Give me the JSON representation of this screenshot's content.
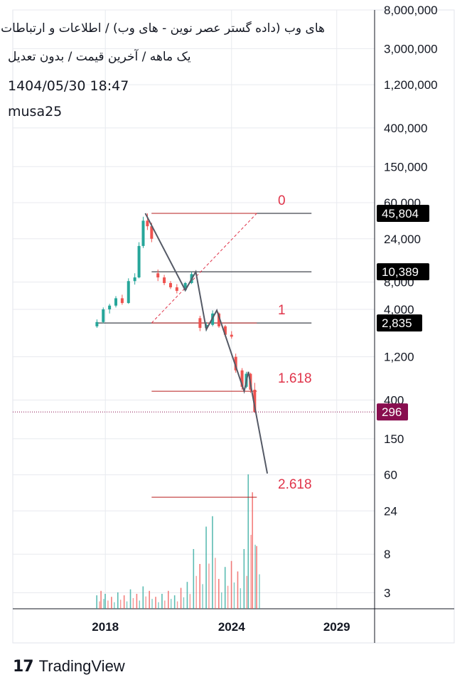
{
  "header": {
    "title": "های وب (داده گستر عصر نوین - های وب) / اطلاعات و ارتباطات",
    "subtitle": "یک ماهه / آخرین قیمت / بدون تعدیل",
    "datetime": "1404/05/30 18:47",
    "user": "musa25"
  },
  "footer": {
    "brand": "TradingView",
    "logo_icon": "tradingview-logo-icon"
  },
  "colors": {
    "up": "#26a69a",
    "down": "#ef5350",
    "fib": "#e0344a",
    "fib_line": "#b71c1c",
    "price_tag": "#000000",
    "current_tag": "#880e4f",
    "grid": "#e8eaef"
  },
  "chart_data": {
    "type": "candlestick",
    "scale": "log",
    "ylim": [
      2,
      8000000
    ],
    "xlim": [
      2013.6,
      2030.8
    ],
    "x_ticks": [
      "2018",
      "2024",
      "2029"
    ],
    "y_ticks": [
      "8,000,000",
      "3,000,000",
      "1,200,000",
      "400,000",
      "150,000",
      "60,000",
      "24,000",
      "8,000",
      "4,000",
      "1,200",
      "400",
      "150",
      "60",
      "24",
      "8",
      "3"
    ],
    "price_tags": [
      {
        "label": "45,804",
        "value": 45804,
        "kind": "level"
      },
      {
        "label": "10,389",
        "value": 10389,
        "kind": "level"
      },
      {
        "label": "2,835",
        "value": 2835,
        "kind": "level"
      },
      {
        "label": "296",
        "value": 296,
        "kind": "current"
      }
    ],
    "fib_levels": [
      {
        "label": "0",
        "value": 45804
      },
      {
        "label": "1",
        "value": 2835
      },
      {
        "label": "1.618",
        "value": 500
      },
      {
        "label": "2.618",
        "value": 34
      }
    ],
    "fib_range": [
      2020.2,
      2025.2
    ],
    "trend_lines": [
      {
        "x1": 2017.6,
        "x2": 2027.8,
        "value": 2835
      },
      {
        "x1": 2020.2,
        "x2": 2027.8,
        "value": 10389
      },
      {
        "x1": 2020.2,
        "x2": 2027.8,
        "value": 45804
      }
    ],
    "fib_diagonal": [
      [
        2020.2,
        2835
      ],
      [
        2025.2,
        45804
      ]
    ],
    "wave_path": [
      [
        2019.9,
        45804
      ],
      [
        2021.8,
        6500
      ],
      [
        2022.3,
        10389
      ],
      [
        2022.8,
        2400
      ],
      [
        2023.3,
        3900
      ],
      [
        2024.6,
        500
      ],
      [
        2024.8,
        820
      ],
      [
        2025.0,
        450
      ],
      [
        2025.7,
        62
      ]
    ],
    "candles": [
      {
        "t": 2017.6,
        "o": 2600,
        "h": 3100,
        "l": 2500,
        "c": 2900
      },
      {
        "t": 2017.9,
        "o": 2900,
        "h": 4200,
        "l": 2800,
        "c": 4000
      },
      {
        "t": 2018.2,
        "o": 4000,
        "h": 4600,
        "l": 3600,
        "c": 4400
      },
      {
        "t": 2018.5,
        "o": 4400,
        "h": 5600,
        "l": 4200,
        "c": 5300
      },
      {
        "t": 2018.8,
        "o": 5300,
        "h": 5800,
        "l": 4500,
        "c": 4700
      },
      {
        "t": 2019.1,
        "o": 4700,
        "h": 8800,
        "l": 4600,
        "c": 8200
      },
      {
        "t": 2019.4,
        "o": 8200,
        "h": 10000,
        "l": 7500,
        "c": 9000
      },
      {
        "t": 2019.6,
        "o": 9000,
        "h": 22000,
        "l": 8800,
        "c": 20000
      },
      {
        "t": 2019.8,
        "o": 20000,
        "h": 42000,
        "l": 19000,
        "c": 38000
      },
      {
        "t": 2020.0,
        "o": 38000,
        "h": 45804,
        "l": 30000,
        "c": 33000
      },
      {
        "t": 2020.2,
        "o": 33000,
        "h": 36000,
        "l": 22000,
        "c": 24000
      },
      {
        "t": 2020.5,
        "o": 10000,
        "h": 11000,
        "l": 8200,
        "c": 9000
      },
      {
        "t": 2020.8,
        "o": 9000,
        "h": 9600,
        "l": 7400,
        "c": 7800
      },
      {
        "t": 2021.1,
        "o": 7800,
        "h": 8200,
        "l": 6700,
        "c": 7000
      },
      {
        "t": 2021.4,
        "o": 7000,
        "h": 7600,
        "l": 6000,
        "c": 6400
      },
      {
        "t": 2021.8,
        "o": 6500,
        "h": 8000,
        "l": 6300,
        "c": 7800
      },
      {
        "t": 2022.1,
        "o": 7800,
        "h": 10389,
        "l": 7600,
        "c": 9800
      },
      {
        "t": 2022.5,
        "o": 3200,
        "h": 3400,
        "l": 2300,
        "c": 2500
      },
      {
        "t": 2022.8,
        "o": 2500,
        "h": 2900,
        "l": 2300,
        "c": 2700
      },
      {
        "t": 2023.1,
        "o": 2700,
        "h": 3900,
        "l": 2600,
        "c": 3600
      },
      {
        "t": 2023.4,
        "o": 3600,
        "h": 3700,
        "l": 2500,
        "c": 2600
      },
      {
        "t": 2023.7,
        "o": 2600,
        "h": 2700,
        "l": 2000,
        "c": 2100
      },
      {
        "t": 2024.0,
        "o": 2100,
        "h": 2300,
        "l": 1900,
        "c": 2000
      },
      {
        "t": 2024.2,
        "o": 1200,
        "h": 1300,
        "l": 800,
        "c": 850
      },
      {
        "t": 2024.5,
        "o": 850,
        "h": 900,
        "l": 520,
        "c": 560
      },
      {
        "t": 2024.7,
        "o": 560,
        "h": 820,
        "l": 540,
        "c": 780
      },
      {
        "t": 2024.9,
        "o": 780,
        "h": 800,
        "l": 480,
        "c": 520
      },
      {
        "t": 2025.1,
        "o": 520,
        "h": 620,
        "l": 290,
        "c": 296
      }
    ],
    "volume": [
      {
        "t": 2017.6,
        "v": 0.09,
        "up": true
      },
      {
        "t": 2017.8,
        "v": 0.12,
        "up": false
      },
      {
        "t": 2018.0,
        "v": 0.1,
        "up": true
      },
      {
        "t": 2018.3,
        "v": 0.08,
        "up": false
      },
      {
        "t": 2018.6,
        "v": 0.11,
        "up": true
      },
      {
        "t": 2018.9,
        "v": 0.09,
        "up": false
      },
      {
        "t": 2019.2,
        "v": 0.13,
        "up": true
      },
      {
        "t": 2019.5,
        "v": 0.1,
        "up": false
      },
      {
        "t": 2019.8,
        "v": 0.15,
        "up": true
      },
      {
        "t": 2020.1,
        "v": 0.12,
        "up": false
      },
      {
        "t": 2020.4,
        "v": 0.08,
        "up": false
      },
      {
        "t": 2020.7,
        "v": 0.1,
        "up": true
      },
      {
        "t": 2021.0,
        "v": 0.12,
        "up": false
      },
      {
        "t": 2021.3,
        "v": 0.09,
        "up": true
      },
      {
        "t": 2021.6,
        "v": 0.14,
        "up": false
      },
      {
        "t": 2021.9,
        "v": 0.18,
        "up": true
      },
      {
        "t": 2022.2,
        "v": 0.4,
        "up": true
      },
      {
        "t": 2022.5,
        "v": 0.3,
        "up": false
      },
      {
        "t": 2022.8,
        "v": 0.55,
        "up": true
      },
      {
        "t": 2023.1,
        "v": 0.62,
        "up": true
      },
      {
        "t": 2023.4,
        "v": 0.2,
        "up": false
      },
      {
        "t": 2023.7,
        "v": 0.28,
        "up": true
      },
      {
        "t": 2024.0,
        "v": 0.32,
        "up": false
      },
      {
        "t": 2024.3,
        "v": 0.25,
        "up": false
      },
      {
        "t": 2024.6,
        "v": 0.4,
        "up": true
      },
      {
        "t": 2024.8,
        "v": 0.9,
        "up": true
      },
      {
        "t": 2025.0,
        "v": 0.78,
        "up": false
      },
      {
        "t": 2025.2,
        "v": 0.42,
        "up": false
      }
    ]
  }
}
